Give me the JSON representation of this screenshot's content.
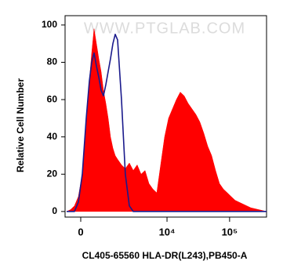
{
  "chart_data": {
    "type": "area",
    "watermark": "WWW.PTGLAB.COM",
    "x_label": "CL405-65560 HLA-DR(L243),PB450-A",
    "y_label": "Relative Cell  Number",
    "x": [
      -455,
      -322,
      -196,
      -73,
      48,
      171,
      271,
      348,
      428,
      512,
      599,
      690,
      786,
      890,
      998,
      1115,
      1241,
      1374,
      1520,
      1785,
      2083,
      2439,
      2838,
      3292,
      3816,
      4426,
      5125,
      5930,
      6854,
      7913,
      9156,
      10584,
      12222,
      14120,
      16313,
      18841,
      21764,
      25133,
      29022,
      33533,
      38724,
      44772,
      51660,
      59724,
      68964,
      79632,
      91980,
      106176,
      122640,
      141540,
      163548,
      188832,
      218148,
      291060,
      388500
    ],
    "series": [
      {
        "color": "#ff0000",
        "style": "fill",
        "values": [
          0,
          1,
          3,
          8,
          20,
          45,
          70,
          85,
          98,
          90,
          82,
          75,
          65,
          58,
          50,
          40,
          34,
          30,
          28,
          25,
          23,
          26,
          22,
          25,
          20,
          22,
          15,
          12,
          10,
          25,
          40,
          50,
          55,
          60,
          64,
          62,
          58,
          55,
          52,
          48,
          42,
          35,
          30,
          22,
          15,
          12,
          10,
          8,
          6,
          5,
          4,
          3,
          2,
          1,
          0
        ]
      },
      {
        "color": "#1a1a8c",
        "style": "line",
        "values": [
          0,
          0,
          0,
          5,
          20,
          50,
          70,
          80,
          85,
          78,
          72,
          65,
          62,
          68,
          75,
          82,
          90,
          95,
          92,
          60,
          20,
          3,
          0,
          0,
          0,
          0,
          0,
          0,
          0,
          0,
          0,
          0,
          0,
          0,
          0,
          0,
          0,
          0,
          0,
          0,
          0,
          0,
          0,
          0,
          0,
          0,
          0,
          0,
          0,
          0,
          0,
          0,
          0,
          0,
          0
        ]
      }
    ],
    "xscale": "asinh",
    "xlim": [
      -511,
      389000
    ],
    "xticks": [
      0,
      {
        "value": 10000,
        "label": "10⁴"
      },
      {
        "value": 100000,
        "label": "10⁵"
      }
    ],
    "ylim": [
      -3,
      105
    ],
    "yticks": [
      0,
      20,
      40,
      60,
      80,
      100
    ]
  }
}
